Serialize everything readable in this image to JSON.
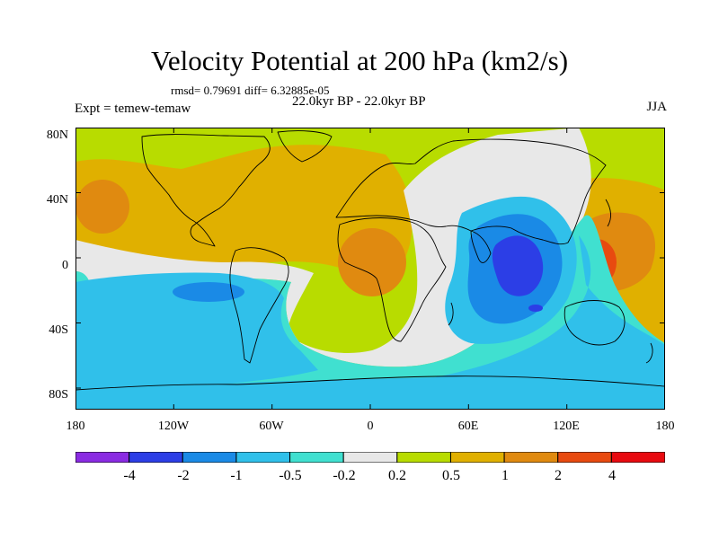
{
  "title": "Velocity Potential at 200 hPa (km2/s)",
  "stats": "rmsd= 0.79691 diff= 6.32885e-05",
  "timespan": "22.0kyr BP - 22.0kyr BP",
  "experiment": "Expt = temew-temaw",
  "season": "JJA",
  "lat_labels": [
    "80N",
    "40N",
    "0",
    "40S",
    "80S"
  ],
  "lon_labels": [
    "180",
    "120W",
    "60W",
    "0",
    "60E",
    "120E",
    "180"
  ],
  "colorbar": {
    "labels": [
      "-4",
      "-2",
      "-1",
      "-0.5",
      "-0.2",
      "0.2",
      "0.5",
      "1",
      "2",
      "4"
    ],
    "colors": [
      "#8a2be2",
      "#2c3ee6",
      "#1a8ae6",
      "#30c0ea",
      "#40e0d0",
      "#e8e8e8",
      "#b8dc00",
      "#e0b000",
      "#e08a10",
      "#e84a10",
      "#e80a10"
    ]
  }
}
